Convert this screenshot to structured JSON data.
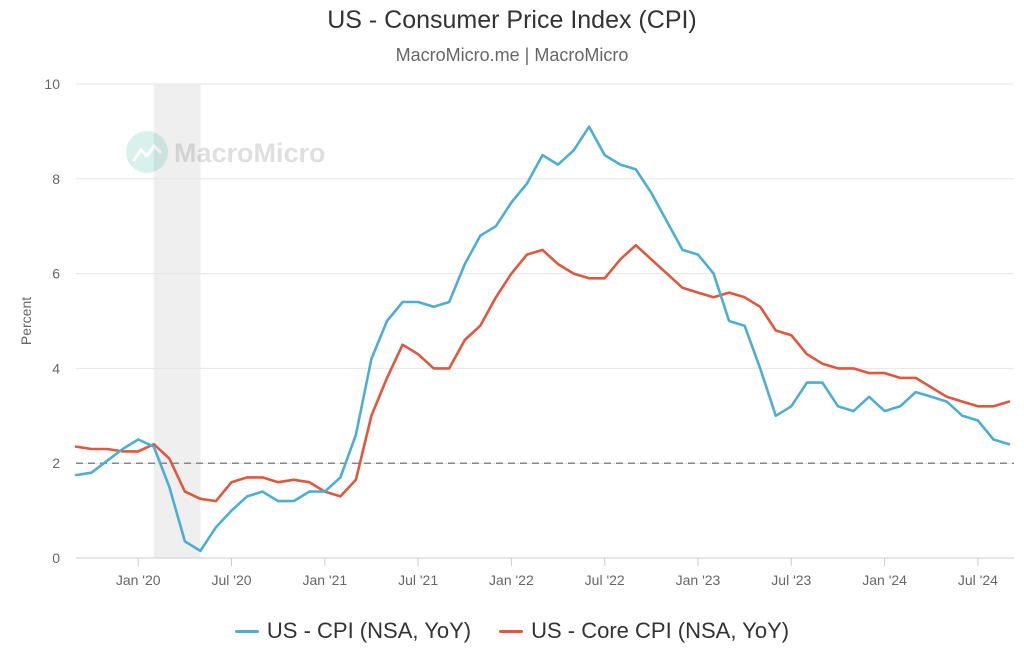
{
  "header": {
    "title": "US - Consumer Price Index (CPI)",
    "subtitle": "MacroMicro.me | MacroMicro"
  },
  "watermark": {
    "text": "MacroMicro",
    "icon": "chart-logo-icon"
  },
  "chart_data": {
    "type": "line",
    "title": "US - Consumer Price Index (CPI)",
    "subtitle": "MacroMicro.me | MacroMicro",
    "xlabel": "",
    "ylabel": "Percent",
    "ylim": [
      0,
      10
    ],
    "yticks": [
      0,
      2,
      4,
      6,
      8,
      10
    ],
    "xticks": [
      {
        "label": "Jan '20",
        "month": "2020-01"
      },
      {
        "label": "Jul '20",
        "month": "2020-07"
      },
      {
        "label": "Jan '21",
        "month": "2021-01"
      },
      {
        "label": "Jul '21",
        "month": "2021-07"
      },
      {
        "label": "Jan '22",
        "month": "2022-01"
      },
      {
        "label": "Jul '22",
        "month": "2022-07"
      },
      {
        "label": "Jan '23",
        "month": "2023-01"
      },
      {
        "label": "Jul '23",
        "month": "2023-07"
      },
      {
        "label": "Jan '24",
        "month": "2024-01"
      },
      {
        "label": "Jul '24",
        "month": "2024-07"
      }
    ],
    "grid": true,
    "reference_line": {
      "value": 2,
      "style": "dashed"
    },
    "shaded_region": {
      "start": "2020-02",
      "end": "2020-04",
      "label": "recession"
    },
    "x": [
      "2019-09",
      "2019-10",
      "2019-11",
      "2019-12",
      "2020-01",
      "2020-02",
      "2020-03",
      "2020-04",
      "2020-05",
      "2020-06",
      "2020-07",
      "2020-08",
      "2020-09",
      "2020-10",
      "2020-11",
      "2020-12",
      "2021-01",
      "2021-02",
      "2021-03",
      "2021-04",
      "2021-05",
      "2021-06",
      "2021-07",
      "2021-08",
      "2021-09",
      "2021-10",
      "2021-11",
      "2021-12",
      "2022-01",
      "2022-02",
      "2022-03",
      "2022-04",
      "2022-05",
      "2022-06",
      "2022-07",
      "2022-08",
      "2022-09",
      "2022-10",
      "2022-11",
      "2022-12",
      "2023-01",
      "2023-02",
      "2023-03",
      "2023-04",
      "2023-05",
      "2023-06",
      "2023-07",
      "2023-08",
      "2023-09",
      "2023-10",
      "2023-11",
      "2023-12",
      "2024-01",
      "2024-02",
      "2024-03",
      "2024-04",
      "2024-05",
      "2024-06",
      "2024-07",
      "2024-08",
      "2024-09"
    ],
    "series": [
      {
        "name": "US - CPI (NSA, YoY)",
        "color": "#4daed3",
        "values": [
          1.75,
          1.8,
          2.05,
          2.3,
          2.5,
          2.35,
          1.5,
          0.35,
          0.15,
          0.65,
          1.0,
          1.3,
          1.4,
          1.2,
          1.2,
          1.4,
          1.4,
          1.7,
          2.6,
          4.2,
          5.0,
          5.4,
          5.4,
          5.3,
          5.4,
          6.2,
          6.8,
          7.0,
          7.5,
          7.9,
          8.5,
          8.3,
          8.6,
          9.1,
          8.5,
          8.3,
          8.2,
          7.7,
          7.1,
          6.5,
          6.4,
          6.0,
          5.0,
          4.9,
          4.0,
          3.0,
          3.2,
          3.7,
          3.7,
          3.2,
          3.1,
          3.4,
          3.1,
          3.2,
          3.5,
          3.4,
          3.3,
          3.0,
          2.9,
          2.5,
          2.4
        ]
      },
      {
        "name": "US - Core CPI (NSA, YoY)",
        "color": "#e0573d",
        "values": [
          2.35,
          2.3,
          2.3,
          2.25,
          2.25,
          2.4,
          2.1,
          1.4,
          1.25,
          1.2,
          1.6,
          1.7,
          1.7,
          1.6,
          1.65,
          1.6,
          1.4,
          1.3,
          1.65,
          3.0,
          3.8,
          4.5,
          4.3,
          4.0,
          4.0,
          4.6,
          4.9,
          5.5,
          6.0,
          6.4,
          6.5,
          6.2,
          6.0,
          5.9,
          5.9,
          6.3,
          6.6,
          6.3,
          6.0,
          5.7,
          5.6,
          5.5,
          5.6,
          5.5,
          5.3,
          4.8,
          4.7,
          4.3,
          4.1,
          4.0,
          4.0,
          3.9,
          3.9,
          3.8,
          3.8,
          3.6,
          3.4,
          3.3,
          3.2,
          3.2,
          3.3
        ]
      }
    ],
    "legend": {
      "position": "bottom"
    }
  }
}
